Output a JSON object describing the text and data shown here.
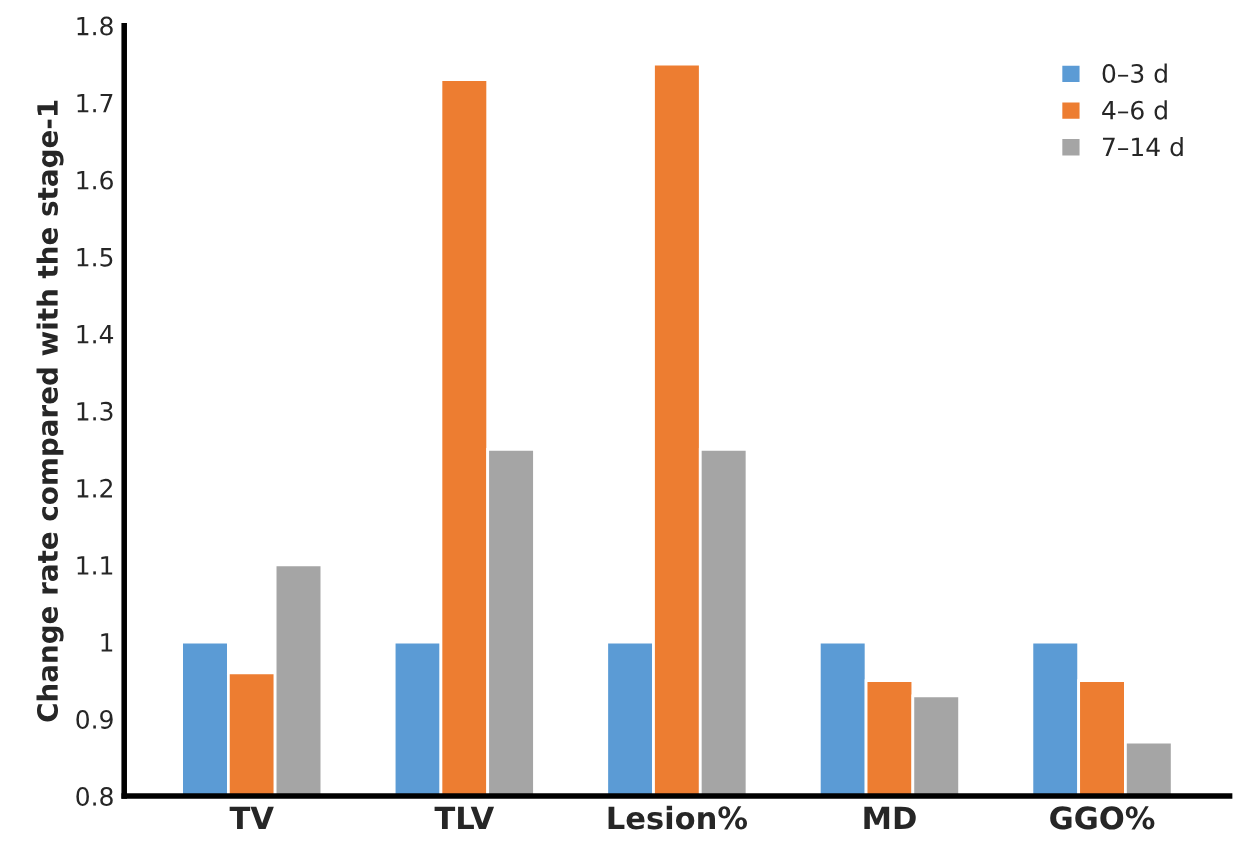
{
  "chart_data": {
    "type": "bar",
    "ylabel": "Change rate compared with the stage-1",
    "categories": [
      "TV",
      "TLV",
      "Lesion%",
      "MD",
      "GGO%"
    ],
    "series": [
      {
        "name": "0–3 d",
        "color": "#5b9bd5",
        "values": [
          1,
          1,
          1,
          1,
          1
        ]
      },
      {
        "name": "4–6 d",
        "color": "#ed7d31",
        "values": [
          0.96,
          1.73,
          1.75,
          0.95,
          0.95
        ]
      },
      {
        "name": "7–14 d",
        "color": "#a5a5a5",
        "values": [
          1.1,
          1.25,
          1.25,
          0.93,
          0.87
        ]
      }
    ],
    "ylim": [
      0.8,
      1.8
    ],
    "yticks": [
      0.8,
      0.9,
      1,
      1.1,
      1.2,
      1.3,
      1.4,
      1.5,
      1.6,
      1.7,
      1.8
    ],
    "grid": false,
    "legend": "top right"
  }
}
